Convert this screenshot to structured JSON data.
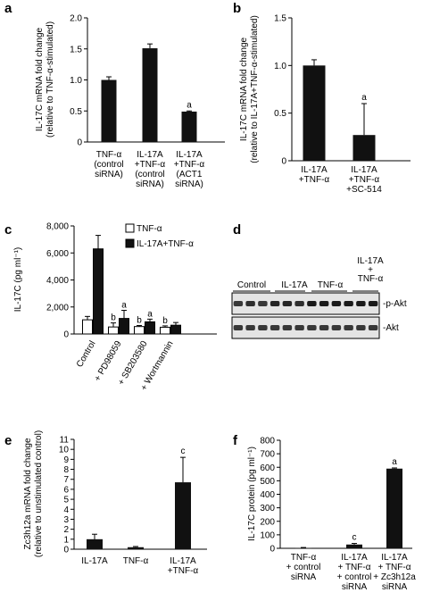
{
  "figure": {
    "panels": [
      {
        "id": "a",
        "label": "a",
        "chart_data": {
          "type": "bar",
          "ylabel": [
            "IL-17C mRNA fold change",
            "(relative to TNF-α-stimulated)"
          ],
          "ylim": [
            0,
            2
          ],
          "yticks": [
            "0",
            "0.5",
            "1.0",
            "1.5",
            "2.0"
          ],
          "ytick_values": [
            0,
            0.5,
            1.0,
            1.5,
            2.0
          ],
          "categories": [
            [
              "TNF-α",
              "(control",
              "siRNA)"
            ],
            [
              "IL-17A",
              "+TNF-α",
              "(control",
              "siRNA)"
            ],
            [
              "IL-17A",
              "+TNF-α",
              "(ACT1",
              "siRNA)"
            ]
          ],
          "values": [
            1.0,
            1.51,
            0.49
          ],
          "errors": [
            0.05,
            0.07,
            0.01
          ],
          "annotations": [
            "",
            "",
            "a"
          ]
        }
      },
      {
        "id": "b",
        "label": "b",
        "chart_data": {
          "type": "bar",
          "ylabel": [
            "IL-17C mRNA fold change",
            "(relative to IL-17A+TNF-α-stimulated)"
          ],
          "ylim": [
            0,
            1.5
          ],
          "yticks": [
            "0",
            "0.5",
            "1.0",
            "1.5"
          ],
          "ytick_values": [
            0,
            0.5,
            1.0,
            1.5
          ],
          "categories": [
            [
              "IL-17A",
              "+TNF-α"
            ],
            [
              "IL-17A",
              "+TNF-α",
              "+SC-514"
            ]
          ],
          "values": [
            1.0,
            0.27
          ],
          "errors": [
            0.06,
            0.33
          ],
          "annotations": [
            "",
            "a"
          ]
        }
      },
      {
        "id": "c",
        "label": "c",
        "chart_data": {
          "type": "bar",
          "ylabel": [
            "IL-17C (pg ml⁻¹)"
          ],
          "ylim": [
            0,
            8000
          ],
          "yticks": [
            "0",
            "2,000",
            "4,000",
            "6,000",
            "8,000"
          ],
          "ytick_values": [
            0,
            2000,
            4000,
            6000,
            8000
          ],
          "categories": [
            "Control",
            "+ PD98059",
            "+ SB203580",
            "+ Wortmannin"
          ],
          "series": [
            {
              "name": "TNF-α",
              "values": [
                1050,
                520,
                550,
                500
              ],
              "errors": [
                250,
                300,
                80,
                100
              ],
              "annotations": [
                "",
                "b",
                "b",
                "b"
              ]
            },
            {
              "name": "IL-17A+TNF-α",
              "values": [
                6300,
                1150,
                900,
                650
              ],
              "errors": [
                1000,
                600,
                200,
                200
              ],
              "annotations": [
                "",
                "a",
                "a",
                ""
              ]
            }
          ],
          "legend_position": "top-right"
        }
      },
      {
        "id": "d",
        "label": "d",
        "blot": {
          "group_labels": [
            "Control",
            "IL-17A",
            "TNF-α",
            [
              "IL-17A",
              "+",
              "TNF-α"
            ]
          ],
          "row_labels": [
            "-p-Akt",
            "-Akt"
          ],
          "lanes": 12,
          "pakt_intensity": [
            0.85,
            0.9,
            0.85,
            0.95,
            0.95,
            0.9,
            1.0,
            1.0,
            1.0,
            1.0,
            1.0,
            1.0
          ],
          "akt_intensity": [
            0.85,
            0.85,
            0.85,
            0.85,
            0.85,
            0.85,
            0.85,
            0.85,
            0.85,
            0.85,
            0.85,
            0.85
          ]
        }
      },
      {
        "id": "e",
        "label": "e",
        "chart_data": {
          "type": "bar",
          "ylabel": [
            "Zc3h12a mRNA fold change",
            "(relative to unstimulated control)"
          ],
          "ylim": [
            0,
            11
          ],
          "yticks": [
            "0",
            "1",
            "2",
            "3",
            "4",
            "5",
            "6",
            "7",
            "8",
            "9",
            "10",
            "11"
          ],
          "ytick_values": [
            0,
            1,
            2,
            3,
            4,
            5,
            6,
            7,
            8,
            9,
            10,
            11
          ],
          "categories": [
            [
              "IL-17A"
            ],
            [
              "TNF-α"
            ],
            [
              "IL-17A",
              "+TNF-α"
            ]
          ],
          "values": [
            1.0,
            0.2,
            6.7
          ],
          "errors": [
            0.5,
            0.07,
            2.5
          ],
          "annotations": [
            "",
            "",
            "c"
          ]
        }
      },
      {
        "id": "f",
        "label": "f",
        "chart_data": {
          "type": "bar",
          "ylabel": [
            "IL-17C protein (pg ml⁻¹)"
          ],
          "ylim": [
            0,
            800
          ],
          "yticks": [
            "0",
            "100",
            "200",
            "300",
            "400",
            "500",
            "600",
            "700",
            "800"
          ],
          "ytick_values": [
            0,
            100,
            200,
            300,
            400,
            500,
            600,
            700,
            800
          ],
          "categories": [
            [
              "TNF-α",
              "+ control",
              "siRNA"
            ],
            [
              "IL-17A",
              "+ TNF-α",
              "+ control",
              "siRNA"
            ],
            [
              "IL-17A",
              "+ TNF-α",
              "+ Zc3h12a",
              "siRNA"
            ]
          ],
          "values": [
            3,
            28,
            590
          ],
          "errors": [
            3,
            8,
            5
          ],
          "annotations": [
            "",
            "c",
            "a"
          ]
        }
      }
    ],
    "colors": {
      "bar_fill": "#111111",
      "open_bar_fill": "#ffffff",
      "axis": "#000000",
      "blot_background": "#e4e4e4",
      "band": "#1a1a1a"
    }
  }
}
